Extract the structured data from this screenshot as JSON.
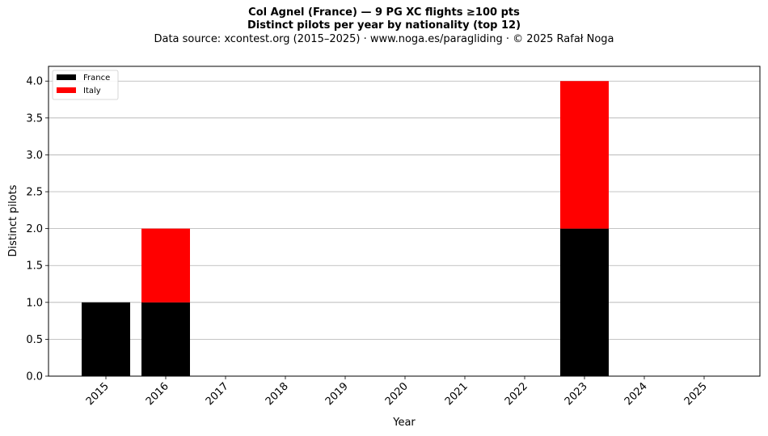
{
  "header": {
    "title": "Col Agnel (France)  —  9 PG XC flights ≥100 pts",
    "subtitle": "Distinct pilots per year by nationality (top 12)",
    "source": "Data source: xcontest.org (2015–2025)  ·  www.noga.es/paragliding  ·  © 2025 Rafał Noga"
  },
  "chart_data": {
    "type": "bar",
    "stacked": true,
    "categories": [
      "2015",
      "2016",
      "2017",
      "2018",
      "2019",
      "2020",
      "2021",
      "2022",
      "2023",
      "2024",
      "2025"
    ],
    "series": [
      {
        "name": "France",
        "color": "#000000",
        "values": [
          1,
          1,
          0,
          0,
          0,
          0,
          0,
          0,
          2,
          0,
          0
        ]
      },
      {
        "name": "Italy",
        "color": "#ff0000",
        "values": [
          0,
          1,
          0,
          0,
          0,
          0,
          0,
          0,
          2,
          0,
          0
        ]
      }
    ],
    "xlabel": "Year",
    "ylabel": "Distinct pilots",
    "ylim": [
      0,
      4.2
    ],
    "yticks": [
      "0.0",
      "0.5",
      "1.0",
      "1.5",
      "2.0",
      "2.5",
      "3.0",
      "3.5",
      "4.0"
    ],
    "grid": "y",
    "legend_position": "top-left"
  }
}
